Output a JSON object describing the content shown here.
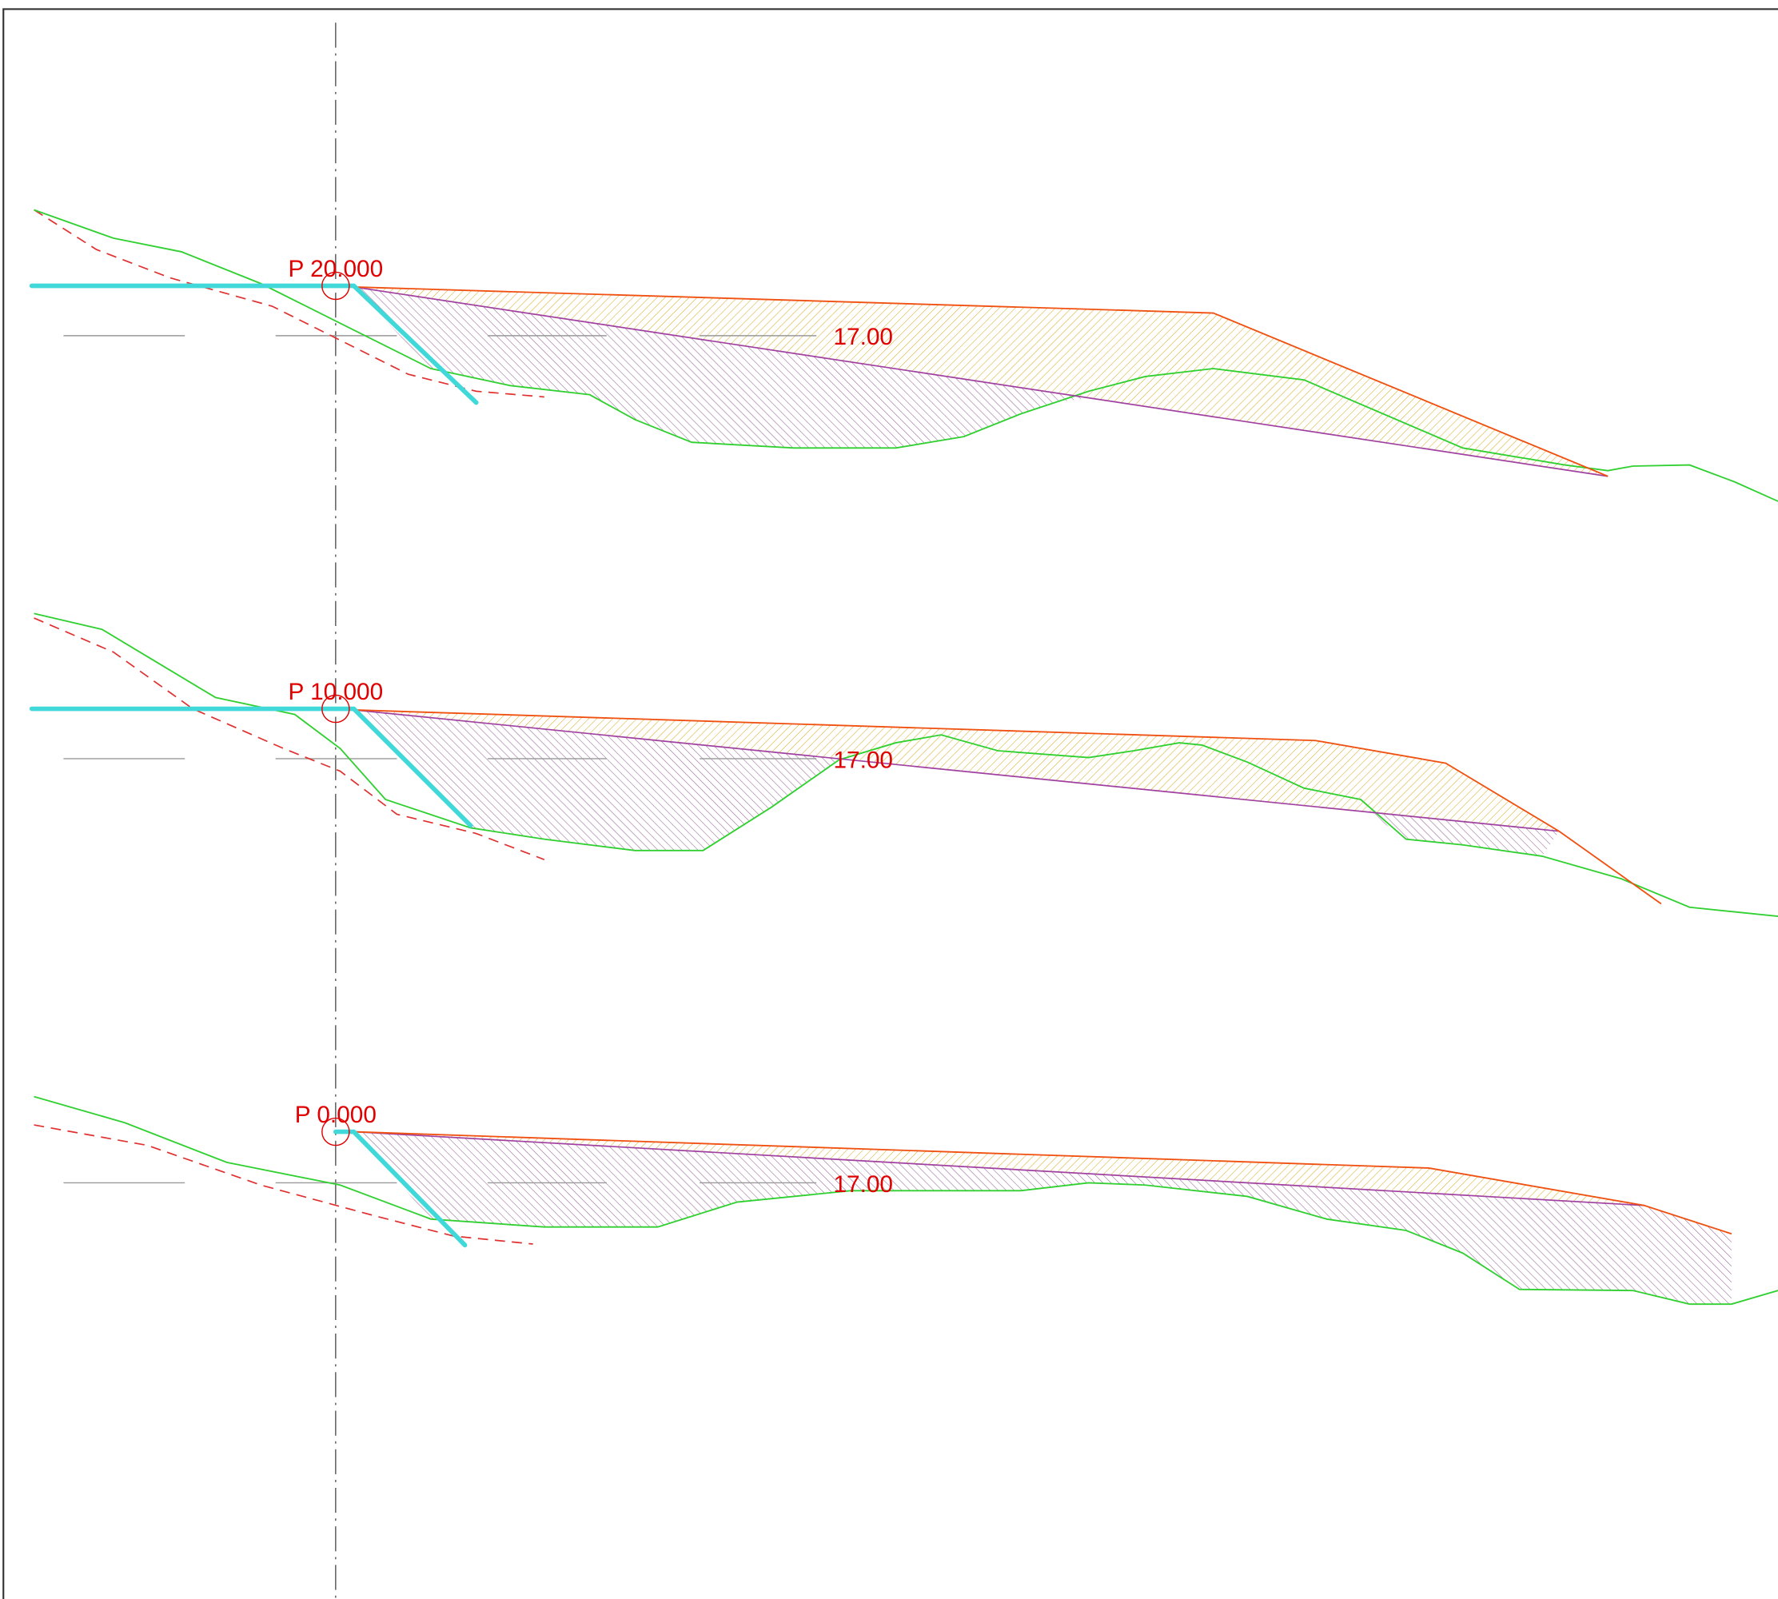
{
  "sections": [
    {
      "label": "P 20.000",
      "level": "17.00"
    },
    {
      "label": "P 10.000",
      "level": "17.00"
    },
    {
      "label": "P 0.000",
      "level": "17.00"
    }
  ]
}
